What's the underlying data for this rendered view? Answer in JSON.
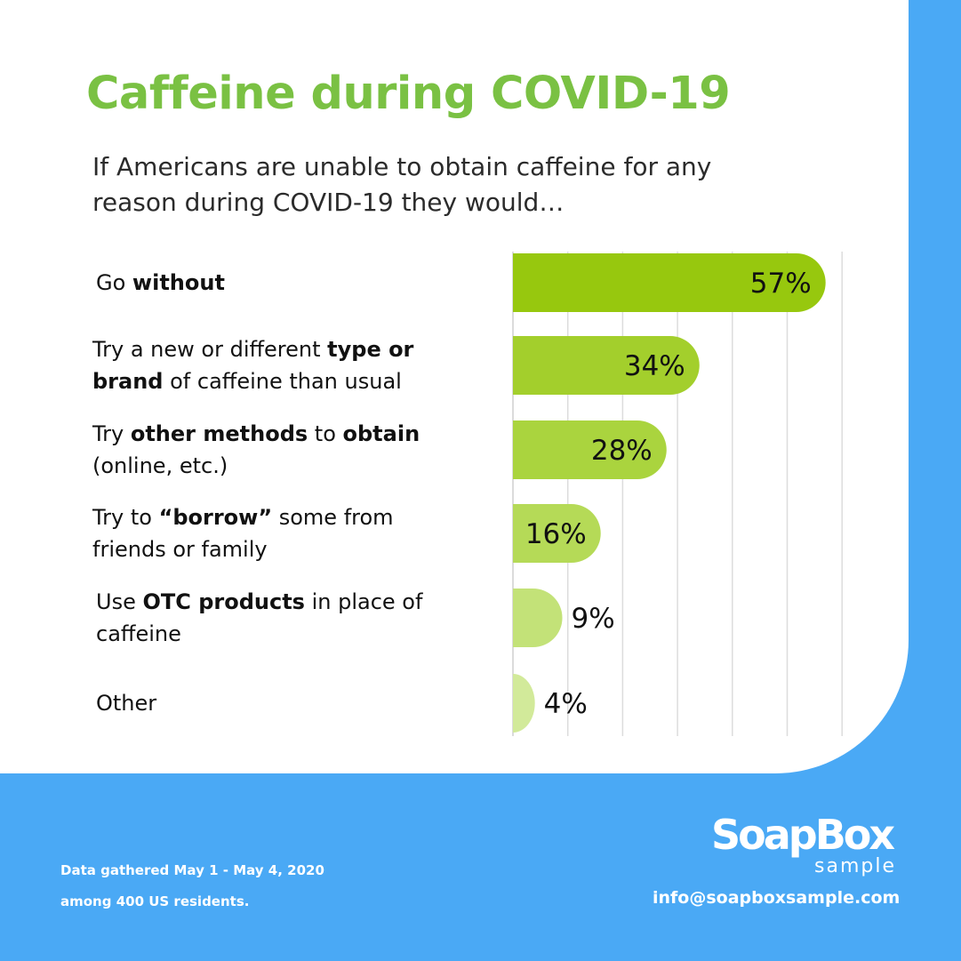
{
  "header": {
    "title": "Caffeine during COVID-19",
    "subtitle_lines": [
      "If Americans are unable to obtain caffeine for any",
      "reason during COVID-19 they would…"
    ]
  },
  "chart_data": {
    "type": "bar",
    "orientation": "horizontal",
    "title": "Caffeine during COVID-19",
    "subtitle": "If Americans are unable to obtain caffeine for any reason during COVID-19 they would…",
    "categories": [
      "Go without",
      "Try a new or different type or brand of caffeine than usual",
      "Try other methods to obtain (online, etc.)",
      "Try to “borrow” some from friends or family",
      "Use OTC products in place of caffeine",
      "Other"
    ],
    "category_lines": [
      [
        [
          [
            "Go ",
            false
          ],
          [
            "without",
            true
          ]
        ]
      ],
      [
        [
          [
            "Try a new or different ",
            false
          ],
          [
            "type or",
            true
          ]
        ],
        [
          [
            "brand",
            true
          ],
          [
            " of caffeine than usual",
            false
          ]
        ]
      ],
      [
        [
          [
            "Try ",
            false
          ],
          [
            "other methods",
            true
          ],
          [
            " to ",
            false
          ],
          [
            "obtain",
            true
          ]
        ],
        [
          [
            "(online, etc.)",
            false
          ]
        ]
      ],
      [
        [
          [
            "Try to ",
            false
          ],
          [
            "“borrow”",
            true
          ],
          [
            " some from",
            false
          ]
        ],
        [
          [
            "friends or family",
            false
          ]
        ]
      ],
      [
        [
          [
            "Use ",
            false
          ],
          [
            "OTC products",
            true
          ],
          [
            " in place of",
            false
          ]
        ],
        [
          [
            "caffeine",
            false
          ]
        ]
      ],
      [
        [
          [
            "Other",
            false
          ]
        ]
      ]
    ],
    "values": [
      57,
      34,
      28,
      16,
      9,
      4
    ],
    "value_labels": [
      "57%",
      "34%",
      "28%",
      "16%",
      "9%",
      "4%"
    ],
    "unit": "%",
    "xlim": [
      0,
      60
    ],
    "grid": true,
    "bar_colors": [
      "#97c80e",
      "#a3cf2c",
      "#aad43e",
      "#b5da57",
      "#c3e278",
      "#d2ea9a"
    ]
  },
  "footer": {
    "note_lines": [
      "Data gathered May 1 - May 4, 2020",
      "among 400 US residents."
    ],
    "brand": "SoapBox",
    "brand_sub": "sample",
    "email": "info@soapboxsample.com"
  },
  "colors": {
    "title": "#7ac143",
    "background_blue": "#4aa9f5",
    "card": "#ffffff"
  }
}
